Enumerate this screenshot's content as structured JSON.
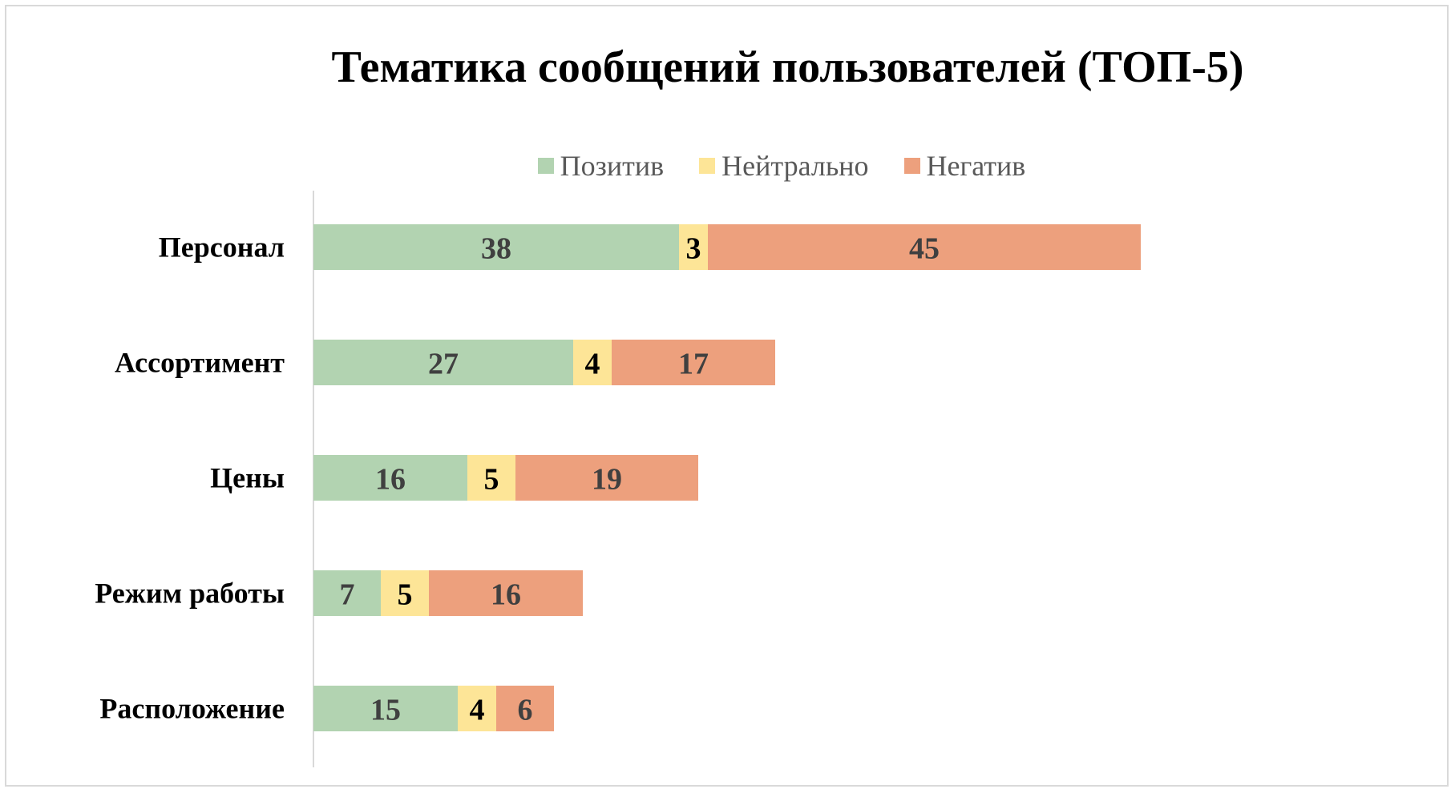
{
  "chart_data": {
    "type": "bar",
    "orientation": "horizontal",
    "stacked": true,
    "title": "Тематика сообщений пользователей (ТОП-5)",
    "categories": [
      "Персонал",
      "Ассортимент",
      "Цены",
      "Режим работы",
      "Расположение"
    ],
    "series": [
      {
        "name": "Позитив",
        "color": "#b2d3b1",
        "label_color": "#404040",
        "values": [
          38,
          27,
          16,
          7,
          15
        ]
      },
      {
        "name": "Нейтрально",
        "color": "#fde597",
        "label_color": "#000000",
        "values": [
          3,
          4,
          5,
          5,
          4
        ]
      },
      {
        "name": "Негатив",
        "color": "#eda07d",
        "label_color": "#404040",
        "values": [
          45,
          17,
          19,
          16,
          6
        ]
      }
    ],
    "legend_position": "top",
    "data_labels": true,
    "grid": false
  }
}
